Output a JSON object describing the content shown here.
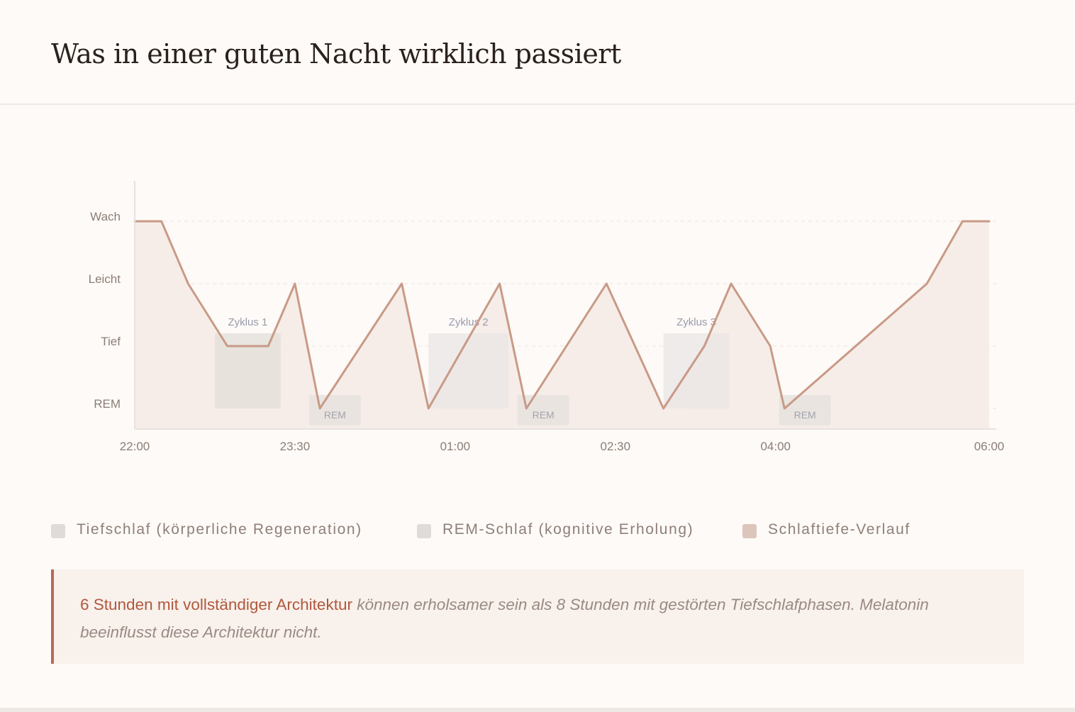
{
  "page": {
    "title": "Was in einer guten Nacht wirklich passiert"
  },
  "chart_data": {
    "type": "line",
    "title": "",
    "xlabel": "",
    "ylabel": "",
    "y_levels": [
      "Wach",
      "Leicht",
      "Tief",
      "REM"
    ],
    "x_ticks": [
      "22:00",
      "23:30",
      "01:00",
      "02:30",
      "04:00",
      "06:00"
    ],
    "x_range": [
      "22:00",
      "06:00"
    ],
    "grid": "dashed horizontal",
    "series": [
      {
        "name": "Schlaftiefe-Verlauf",
        "color": "#c99a87",
        "points": [
          [
            "22:00",
            "Wach"
          ],
          [
            "22:15",
            "Wach"
          ],
          [
            "22:30",
            "Leicht"
          ],
          [
            "22:52",
            "Tief"
          ],
          [
            "23:15",
            "Tief"
          ],
          [
            "23:30",
            "Leicht"
          ],
          [
            "23:44",
            "REM"
          ],
          [
            "00:30",
            "Leicht"
          ],
          [
            "00:45",
            "REM"
          ],
          [
            "01:25",
            "Leicht"
          ],
          [
            "01:40",
            "REM"
          ],
          [
            "02:25",
            "Leicht"
          ],
          [
            "02:57",
            "REM"
          ],
          [
            "03:20",
            "Tief"
          ],
          [
            "03:35",
            "Leicht"
          ],
          [
            "03:57",
            "Tief"
          ],
          [
            "04:05",
            "REM"
          ],
          [
            "05:25",
            "Leicht"
          ],
          [
            "05:45",
            "Wach"
          ],
          [
            "06:00",
            "Wach"
          ]
        ]
      }
    ],
    "cycles": [
      {
        "label": "Zyklus 1",
        "start": "22:45",
        "end": "23:22",
        "color": "#e2ddd8"
      },
      {
        "label": "Zyklus 2",
        "start": "00:45",
        "end": "01:30",
        "color": "#e9e6e6"
      },
      {
        "label": "Zyklus 3",
        "start": "02:57",
        "end": "03:34",
        "color": "#e9e6e6"
      }
    ],
    "rem_phases": [
      {
        "label": "REM",
        "start": "23:38",
        "end": "24:07"
      },
      {
        "label": "REM",
        "start": "01:35",
        "end": "02:04"
      },
      {
        "label": "REM",
        "start": "04:02",
        "end": "04:31"
      }
    ],
    "colors": {
      "line": "#c99a87",
      "area": "#f5ebe5",
      "axis": "#e7e2de",
      "grid": "#ece4de",
      "tick_text": "#8c7d76",
      "cycle_label": "#9a9aae",
      "rem_box": "#e6e2de",
      "rem_label": "#a3a3ad"
    }
  },
  "legend": {
    "items": [
      {
        "label": "Tiefschlaf (körperliche Regeneration)",
        "color": "#dedbd8"
      },
      {
        "label": "REM-Schlaf (kognitive Erholung)",
        "color": "#dedbd8"
      },
      {
        "label": "Schlaftiefe-Verlauf",
        "color": "#dcc5bb"
      }
    ]
  },
  "note": {
    "strong": "6 Stunden mit vollständiger Architektur",
    "emphasis": "können erholsamer sein als 8 Stunden mit gestörten Tiefschlafphasen. Melatonin beeinflusst diese Architektur nicht."
  }
}
